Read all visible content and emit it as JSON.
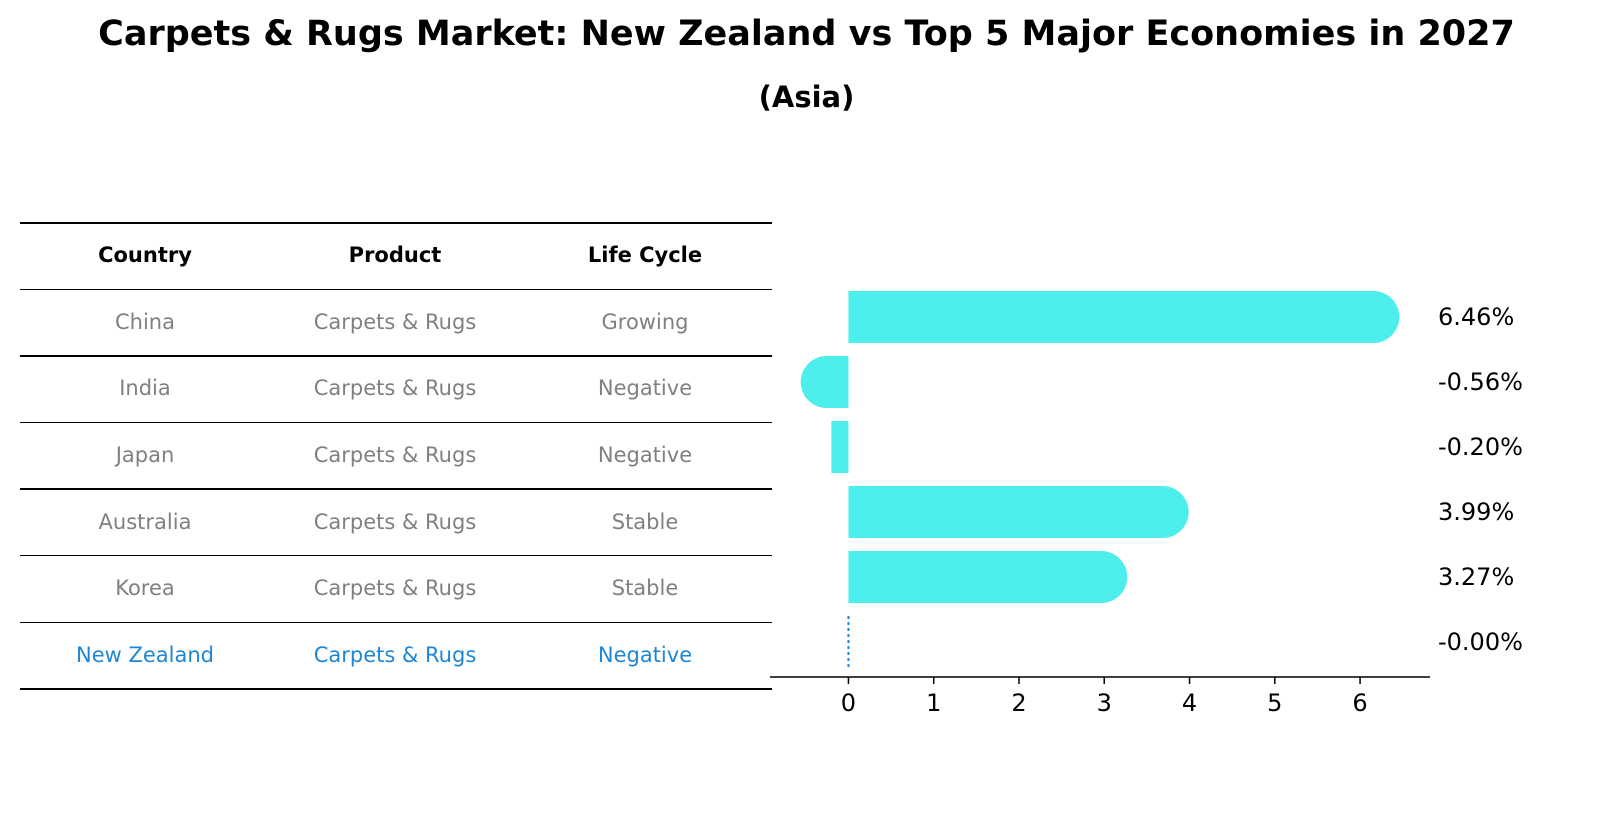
{
  "title": "Carpets & Rugs Market: New Zealand vs Top 5 Major Economies in 2027",
  "subtitle": "(Asia)",
  "table": {
    "headers": [
      "Country",
      "Product",
      "Life Cycle"
    ],
    "rows": [
      [
        "China",
        "Carpets & Rugs",
        "Growing"
      ],
      [
        "India",
        "Carpets & Rugs",
        "Negative"
      ],
      [
        "Japan",
        "Carpets & Rugs",
        "Negative"
      ],
      [
        "Australia",
        "Carpets & Rugs",
        "Stable"
      ],
      [
        "Korea",
        "Carpets & Rugs",
        "Stable"
      ],
      [
        "New Zealand",
        "Carpets & Rugs",
        "Negative"
      ]
    ]
  },
  "colors": {
    "bar": "#4cefec",
    "highlight": "#1f86d6",
    "muted": "#808080"
  },
  "chart_data": {
    "type": "bar",
    "orientation": "horizontal",
    "categories": [
      "China",
      "India",
      "Japan",
      "Australia",
      "Korea",
      "New Zealand"
    ],
    "values": [
      6.46,
      -0.56,
      -0.2,
      3.99,
      3.27,
      -0.0
    ],
    "value_labels": [
      "6.46%",
      "-0.56%",
      "-0.20%",
      "3.99%",
      "3.27%",
      "-0.00%"
    ],
    "xticks": [
      "0",
      "1",
      "2",
      "3",
      "4",
      "5",
      "6"
    ],
    "xlim": [
      -0.92,
      6.82
    ],
    "grid": false
  }
}
